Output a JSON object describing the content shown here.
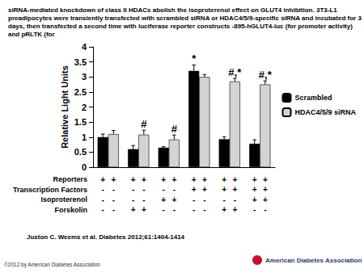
{
  "header": {
    "title": "siRNA-mediated knockdown of class II HDACs abolish the isoproterenol effect on GLUT4 inhibition. 3T3-L1 preadipocytes were transiently transfected with scrambled siRNA or HDAC4/5/9-specific siRNA and incubated for 3 days, then transfected a second time with luciferase reporter constructs -895-hGLUT4-luc (for promoter activity) and pRLTK (for"
  },
  "chart_data": {
    "type": "bar",
    "y_label": "Relative Light Units",
    "categories": [
      null,
      null,
      null,
      null,
      null,
      null
    ],
    "series": [
      {
        "name": "Scrambled",
        "color": "#000000",
        "values": [
          1.0,
          0.6,
          0.65,
          3.2,
          0.93,
          0.78
        ],
        "errors": [
          0.1,
          0.12,
          0.03,
          0.2,
          0.08,
          0.13
        ],
        "annotations": [
          null,
          null,
          null,
          "*",
          null,
          null
        ]
      },
      {
        "name": "HDAC4/5/9 siRNA",
        "color": "#d3d3d3",
        "values": [
          1.1,
          1.08,
          0.92,
          3.0,
          2.85,
          2.75
        ],
        "errors": [
          0.12,
          0.15,
          0.15,
          0.08,
          0.1,
          0.12
        ],
        "annotations": [
          null,
          "#",
          "#",
          null,
          "#,*",
          "#,*"
        ]
      }
    ],
    "ylim": [
      0,
      4
    ],
    "yticks": [
      0,
      0.5,
      1,
      1.5,
      2,
      2.5,
      3,
      3.5,
      4
    ],
    "grid": false,
    "legend": "right",
    "tick_labels": "y",
    "treatment_table": [
      {
        "label": "Reporters",
        "cells": [
          "+",
          "+",
          "+",
          "+",
          "+",
          "+",
          "+",
          "+",
          "+",
          "+",
          "+",
          "+"
        ]
      },
      {
        "label": "Transcription Factors",
        "cells": [
          "-",
          "-",
          "-",
          "-",
          "-",
          "-",
          "+",
          "+",
          "+",
          "+",
          "+",
          "+"
        ]
      },
      {
        "label": "Isoproterenol",
        "cells": [
          "-",
          "-",
          "-",
          "-",
          "+",
          "+",
          "-",
          "-",
          "-",
          "-",
          "+",
          "+"
        ]
      },
      {
        "label": "Forskolin",
        "cells": [
          "-",
          "-",
          "+",
          "+",
          "-",
          "-",
          "-",
          "-",
          "+",
          "+",
          "-",
          "-"
        ]
      }
    ]
  },
  "footer": {
    "citation": "Juston C. Weems et al. Diabetes 2012;61:1404-1414",
    "copyright": "©2012 by American Diabetes Association",
    "logo": "American Diabetes Association"
  }
}
